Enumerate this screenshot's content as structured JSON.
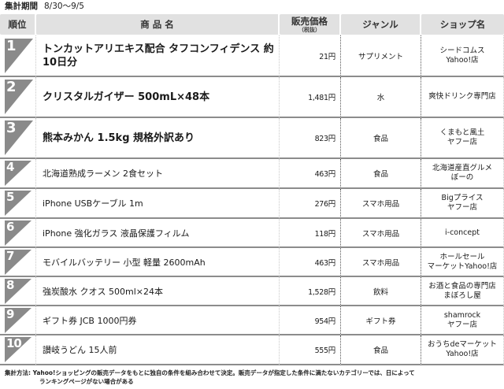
{
  "period": {
    "label": "集計期間",
    "range": "8/30〜9/5"
  },
  "table": {
    "headers": {
      "rank": "順位",
      "name": "商 品 名",
      "price": "販売価格",
      "price_sub": "（税抜）",
      "genre": "ジャンル",
      "shop": "ショップ名"
    },
    "rows": [
      {
        "rank": "1",
        "name": "トンカットアリエキス配合 タフコンフィデンス 約10日分",
        "price": "21円",
        "genre": "サプリメント",
        "shop_line1": "シードコムス",
        "shop_line2": "Yahoo!店"
      },
      {
        "rank": "2",
        "name": "クリスタルガイザー 500mL×48本",
        "price": "1,481円",
        "genre": "水",
        "shop_line1": "爽快ドリンク専門店",
        "shop_line2": ""
      },
      {
        "rank": "3",
        "name": "熊本みかん 1.5kg 規格外訳あり",
        "price": "823円",
        "genre": "食品",
        "shop_line1": "くまもと風土",
        "shop_line2": "ヤフー店"
      },
      {
        "rank": "4",
        "name": "北海道熟成ラーメン 2食セット",
        "price": "463円",
        "genre": "食品",
        "shop_line1": "北海道産直グルメ",
        "shop_line2": "ぼーの"
      },
      {
        "rank": "5",
        "name": "iPhone USBケーブル 1m",
        "price": "276円",
        "genre": "スマホ用品",
        "shop_line1": "Bigプライス",
        "shop_line2": "ヤフー店"
      },
      {
        "rank": "6",
        "name": "iPhone 強化ガラス 液晶保護フィルム",
        "price": "118円",
        "genre": "スマホ用品",
        "shop_line1": "i-concept",
        "shop_line2": ""
      },
      {
        "rank": "7",
        "name": "モバイルバッテリー 小型 軽量 2600mAh",
        "price": "463円",
        "genre": "スマホ用品",
        "shop_line1": "ホールセール",
        "shop_line2": "マーケットYahoo!店"
      },
      {
        "rank": "8",
        "name": "強炭酸水 クオス 500ml×24本",
        "price": "1,528円",
        "genre": "飲料",
        "shop_line1": "お酒と食品の専門店",
        "shop_line2": "まぼろし屋"
      },
      {
        "rank": "9",
        "name": "ギフト券 JCB 1000円券",
        "price": "954円",
        "genre": "ギフト券",
        "shop_line1": "shamrock",
        "shop_line2": "ヤフー店"
      },
      {
        "rank": "10",
        "name": "讃岐うどん 15人前",
        "price": "555円",
        "genre": "食品",
        "shop_line1": "おうちdeマーケット",
        "shop_line2": "Yahoo!店"
      }
    ]
  },
  "footnote": {
    "line1": "集計方法: Yahoo!ショッピングの販売データをもとに独自の条件を組み合わせて決定。販売データが指定した条件に満たないカテゴリーでは、日によって",
    "line2": "ランキングページがない場合がある"
  },
  "colors": {
    "header_bg": "#e1e1e1",
    "badge_gray": "#8a8a8a",
    "row_border": "#8c8c8c"
  }
}
